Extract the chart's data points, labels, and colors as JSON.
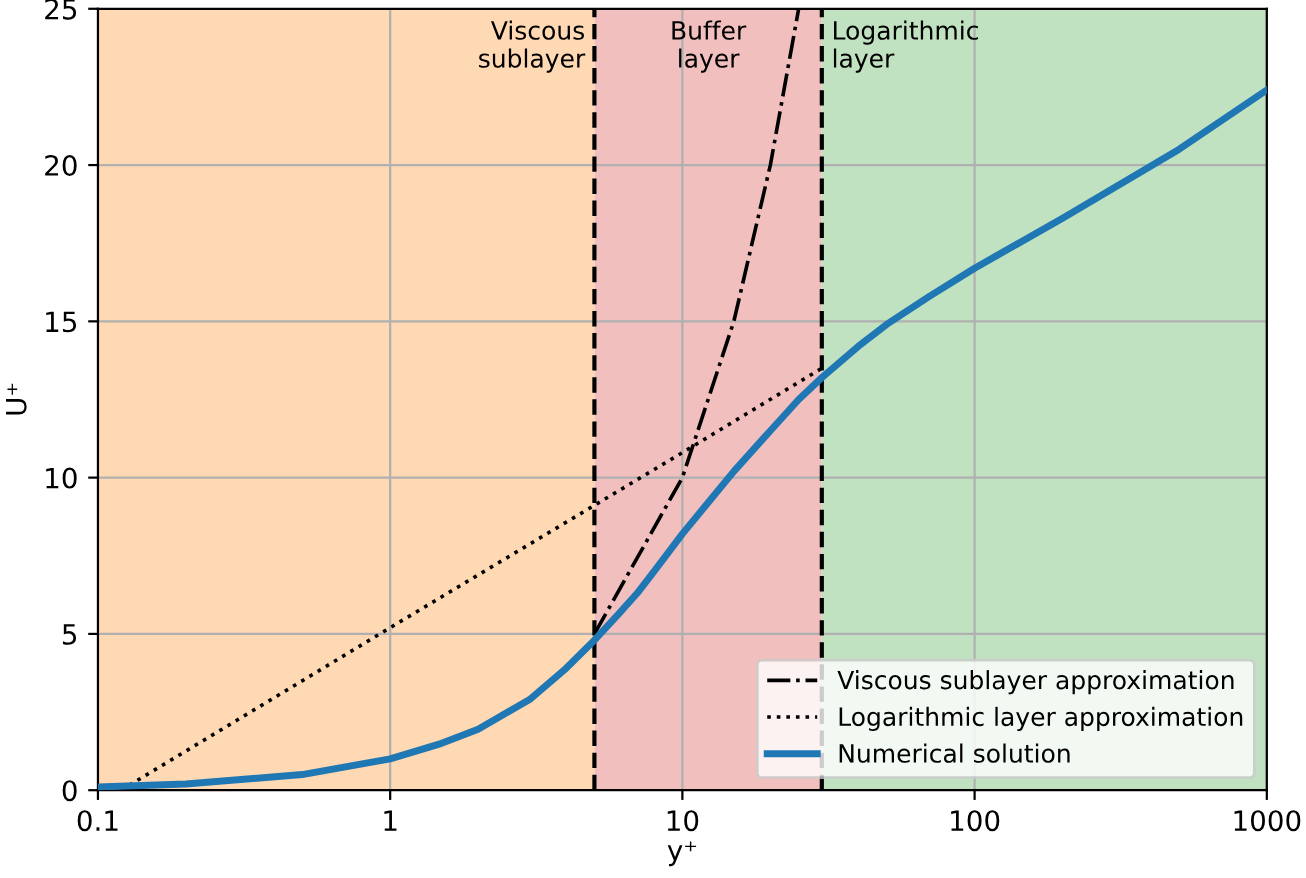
{
  "chart_data": {
    "type": "line",
    "xlabel": "y⁺",
    "ylabel": "U⁺",
    "log": "x",
    "xlim": [
      0.1,
      1000
    ],
    "xticks": [
      0.1,
      1,
      10,
      100,
      1000
    ],
    "ylim": [
      0,
      25
    ],
    "yticks": [
      0,
      5,
      10,
      15,
      20,
      25
    ],
    "grid": true,
    "legend": "bottom right",
    "marker": "none",
    "series": [
      {
        "name": "Viscous sublayer approximation",
        "color": "#000000",
        "line_style": "dashdot",
        "x": [
          5,
          10,
          15,
          20,
          25
        ],
        "values": [
          5,
          10,
          15,
          20,
          25
        ]
      },
      {
        "name": "Logarithmic layer approximation",
        "color": "#000000",
        "line_style": "dotted",
        "x": [
          0.12,
          1,
          10,
          30
        ],
        "values": [
          0,
          5.2,
          10.8,
          13.5
        ]
      },
      {
        "name": "Numerical solution",
        "color": "#1f77b4",
        "line_style": "solid",
        "x": [
          0.1,
          0.2,
          0.5,
          1,
          1.5,
          2,
          3,
          4,
          5,
          6,
          7,
          8,
          10,
          12,
          15,
          20,
          25,
          30,
          40,
          50,
          70,
          100,
          200,
          500,
          1000
        ],
        "values": [
          0.1,
          0.2,
          0.5,
          1.0,
          1.5,
          1.95,
          2.9,
          3.9,
          4.8,
          5.6,
          6.3,
          7.0,
          8.2,
          9.1,
          10.2,
          11.5,
          12.5,
          13.2,
          14.2,
          14.9,
          15.8,
          16.7,
          18.3,
          20.5,
          22.4
        ]
      }
    ],
    "bands": [
      {
        "axis": "x",
        "from": 0.1,
        "to": 5,
        "label": "Viscous\nsublayer",
        "color": "#ffd9b3"
      },
      {
        "axis": "x",
        "from": 5,
        "to": 30,
        "label": "Buffer\nlayer",
        "color": "#f2bfbf"
      },
      {
        "axis": "x",
        "from": 30,
        "to": 1000,
        "label": "Logarithmic\nlayer",
        "color": "#c0e2c0"
      }
    ],
    "ref_lines": [
      {
        "axis": "x",
        "value": 5,
        "label": null,
        "color": "#000000",
        "line_style": "dashed"
      },
      {
        "axis": "x",
        "value": 30,
        "label": null,
        "color": "#000000",
        "line_style": "dashed"
      }
    ]
  }
}
